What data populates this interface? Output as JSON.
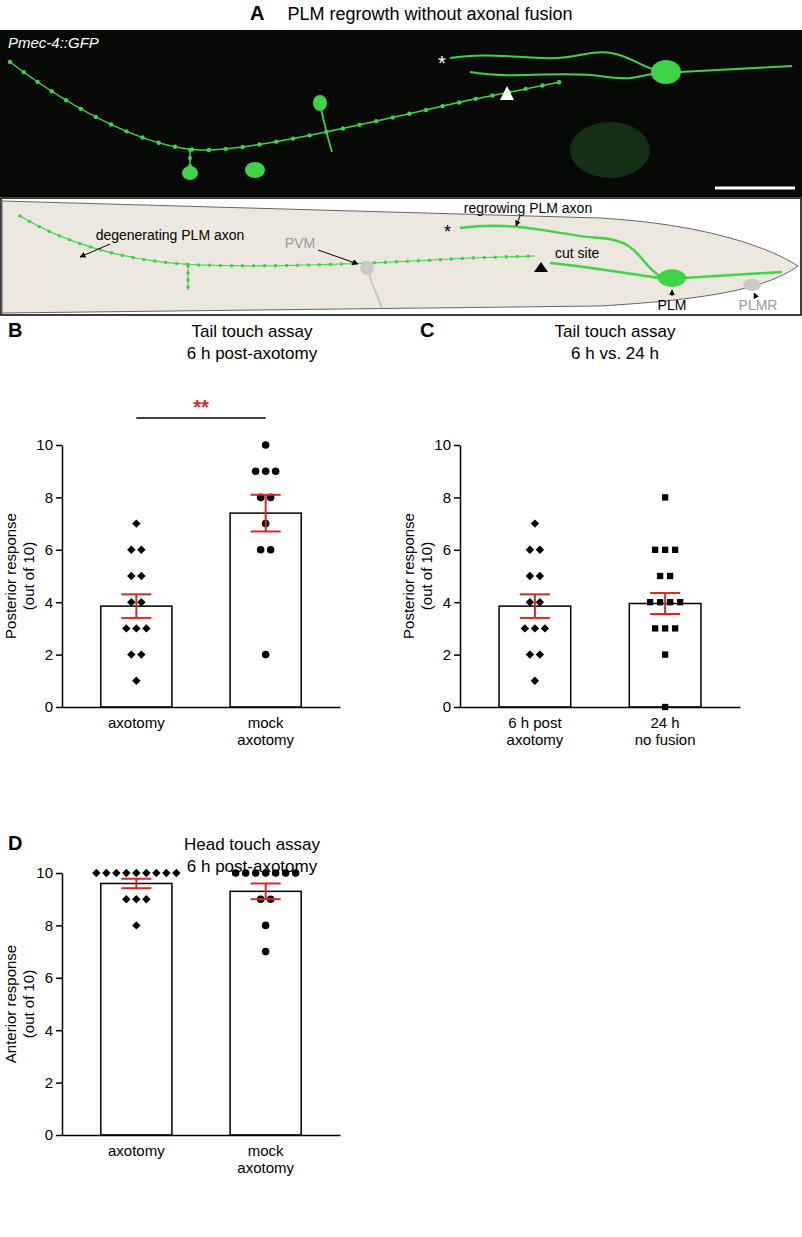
{
  "panel_a": {
    "label": "A",
    "title": "PLM regrowth without axonal fusion",
    "image_label": "Pmec-4::GFP",
    "asterisk": "*",
    "labels": {
      "degenerating": "degenerating PLM axon",
      "pvm": "PVM",
      "regrowing": "regrowing PLM axon",
      "cut": "cut site",
      "plm": "PLM",
      "plmr": "PLMR"
    }
  },
  "chart_data": [
    {
      "type": "bar",
      "annotations": [
        "B",
        "**"
      ],
      "title": "Tail touch assay",
      "subtitle": "6 h post-axotomy",
      "y_label": [
        "Posterior response",
        "(out of 10)"
      ],
      "categories": [
        "axotomy",
        "mock\naxotomy"
      ],
      "values": [
        3.85,
        7.4
      ],
      "errors": [
        0.45,
        0.7
      ],
      "points": [
        [
          7,
          6,
          6,
          5,
          5,
          4,
          4,
          3,
          3,
          3,
          2,
          2,
          1
        ],
        [
          10,
          9,
          9,
          9,
          8,
          8,
          7,
          6,
          6,
          2
        ]
      ],
      "marker": [
        "diamond",
        "circle"
      ],
      "color": "#ffffff",
      "ylim": [
        0,
        10
      ],
      "yticks": [
        0,
        2,
        4,
        6,
        8,
        10
      ]
    },
    {
      "type": "bar",
      "annotations": [
        "C"
      ],
      "title": "Tail touch assay",
      "subtitle": "6 h vs. 24 h",
      "y_label": [
        "Posterior response",
        "(out of 10)"
      ],
      "categories": [
        "6 h post\naxotomy",
        "24 h\nno fusion"
      ],
      "values": [
        3.85,
        3.95
      ],
      "errors": [
        0.45,
        0.4
      ],
      "points": [
        [
          7,
          6,
          6,
          5,
          5,
          4,
          4,
          3,
          3,
          3,
          2,
          2,
          1
        ],
        [
          8,
          6,
          6,
          6,
          5,
          5,
          4,
          4,
          4,
          4,
          3,
          3,
          3,
          2,
          0
        ]
      ],
      "marker": [
        "diamond",
        "square"
      ],
      "color": "#ffffff",
      "ylim": [
        0,
        10
      ],
      "yticks": [
        0,
        2,
        4,
        6,
        8,
        10
      ]
    },
    {
      "type": "bar",
      "annotations": [
        "D"
      ],
      "title": "Head touch assay",
      "subtitle": "6 h post-axotomy",
      "y_label": [
        "Anterior response",
        "(out of 10)"
      ],
      "categories": [
        "axotomy",
        "mock\naxotomy"
      ],
      "values": [
        9.6,
        9.3
      ],
      "errors": [
        0.18,
        0.3
      ],
      "points": [
        [
          10,
          10,
          10,
          10,
          10,
          10,
          10,
          10,
          10,
          9,
          9,
          9,
          8
        ],
        [
          10,
          10,
          10,
          10,
          10,
          10,
          10,
          9,
          9,
          8,
          7
        ]
      ],
      "marker": [
        "diamond",
        "circle"
      ],
      "color": "#ffffff",
      "ylim": [
        0,
        10
      ],
      "yticks": [
        0,
        2,
        4,
        6,
        8,
        10
      ]
    }
  ]
}
